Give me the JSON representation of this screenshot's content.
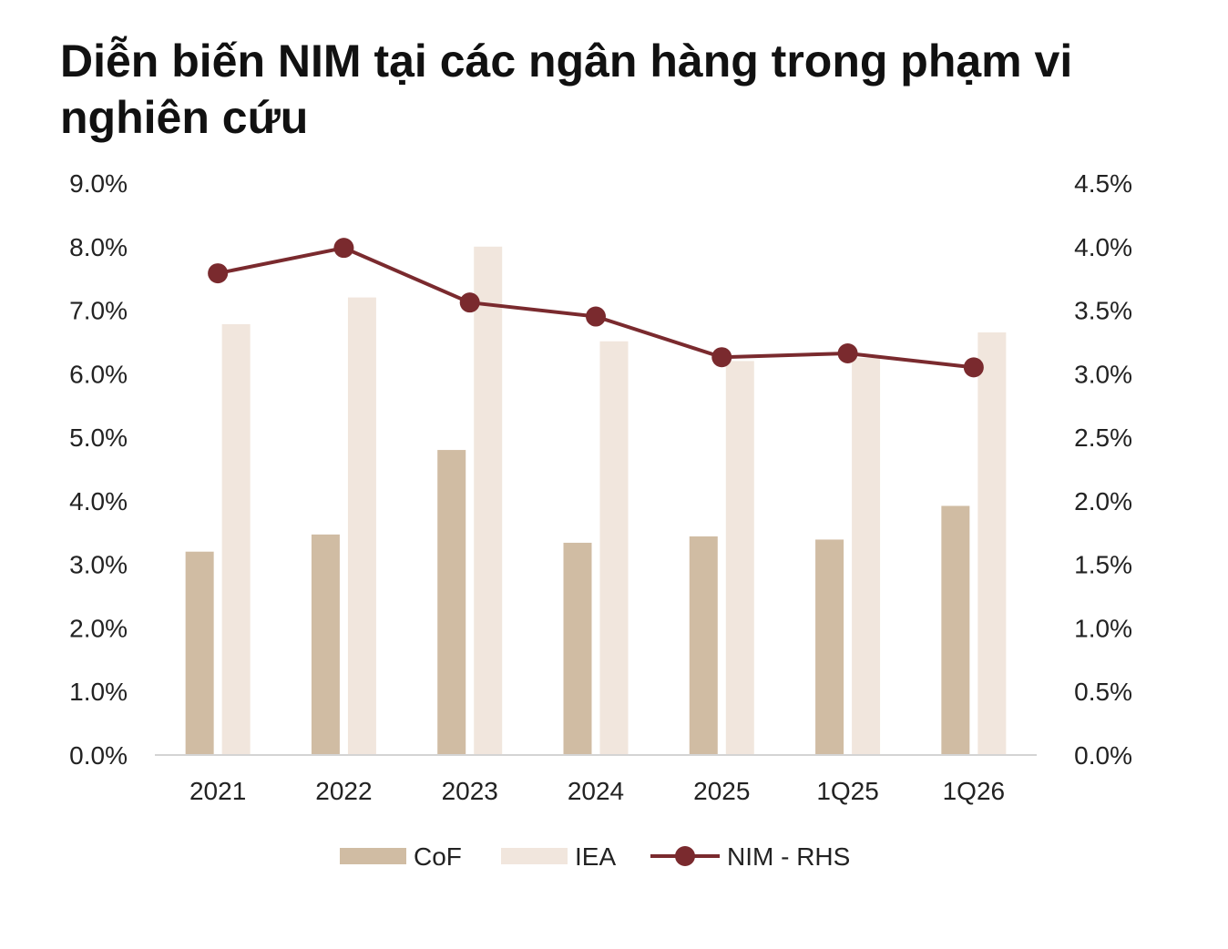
{
  "chart_data": {
    "type": "bar",
    "title": "Diễn biến NIM tại các ngân hàng trong phạm vi nghiên cứu",
    "categories": [
      "2021",
      "2022",
      "2023",
      "2024",
      "2025",
      "1Q25",
      "1Q26"
    ],
    "series": [
      {
        "name": "CoF",
        "type": "bar",
        "axis": "left",
        "color": "#d0bca3",
        "values": [
          3.2,
          3.47,
          4.8,
          3.34,
          3.44,
          3.39,
          3.92
        ]
      },
      {
        "name": "IEA",
        "type": "bar",
        "axis": "left",
        "color": "#f1e6dd",
        "values": [
          6.78,
          7.2,
          8.0,
          6.51,
          6.2,
          6.25,
          6.65
        ]
      },
      {
        "name": "NIM - RHS",
        "type": "line",
        "axis": "right",
        "color": "#7a2a2e",
        "values": [
          3.79,
          3.99,
          3.56,
          3.45,
          3.13,
          3.16,
          3.05
        ]
      }
    ],
    "y_left": {
      "ylim": [
        0,
        9
      ],
      "ticks": [
        "9.0%",
        "8.0%",
        "7.0%",
        "6.0%",
        "5.0%",
        "4.0%",
        "3.0%",
        "2.0%",
        "1.0%",
        "0.0%"
      ]
    },
    "y_right": {
      "ylim": [
        0,
        4.5
      ],
      "ticks": [
        "4.5%",
        "4.0%",
        "3.5%",
        "3.0%",
        "2.5%",
        "2.0%",
        "1.5%",
        "1.0%",
        "0.5%",
        "0.0%"
      ]
    },
    "legend": {
      "position": "bottom",
      "items": [
        "CoF",
        "IEA",
        "NIM - RHS"
      ]
    },
    "grid": false
  }
}
